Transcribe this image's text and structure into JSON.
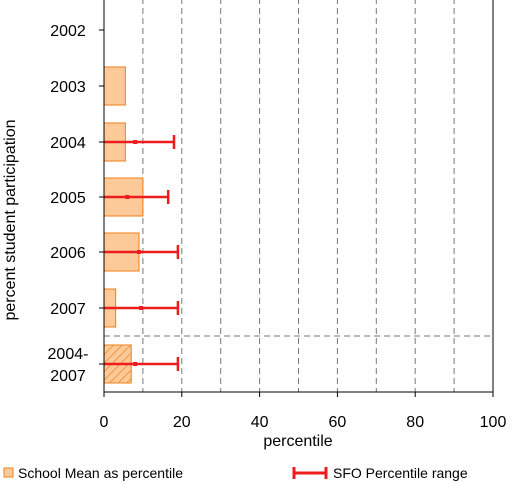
{
  "chart_data": {
    "type": "bar",
    "orientation": "horizontal",
    "title": "",
    "xlabel": "percentile",
    "ylabel": "percent student participation",
    "xlim": [
      0,
      100
    ],
    "xticks": [
      0,
      20,
      40,
      60,
      80,
      100
    ],
    "grid": "vertical dashed at every 10",
    "categories": [
      "2002",
      "2003",
      "2004",
      "2005",
      "2006",
      "2007",
      "2004-\n2007"
    ],
    "category_lines": [
      [
        "2002"
      ],
      [
        "2003"
      ],
      [
        "2004"
      ],
      [
        "2005"
      ],
      [
        "2006"
      ],
      [
        "2007"
      ],
      [
        "2004-",
        "2007"
      ]
    ],
    "series": [
      {
        "name": "School Mean as percentile",
        "values": [
          null,
          5.5,
          5.5,
          10,
          9,
          3,
          7
        ]
      },
      {
        "name": "SFO Percentile range",
        "ranges": [
          null,
          null,
          [
            0,
            18
          ],
          [
            0,
            16.5
          ],
          [
            0,
            19
          ],
          [
            0,
            19
          ],
          [
            0,
            19
          ]
        ],
        "midpoints": [
          null,
          null,
          8,
          6,
          9,
          9.5,
          8
        ]
      }
    ],
    "colors": {
      "bar_fill": "#fcc998",
      "bar_stroke": "#f07f1a",
      "range": "#ee1c1c",
      "grid": "#777777"
    },
    "legend": {
      "position": "bottom"
    }
  }
}
